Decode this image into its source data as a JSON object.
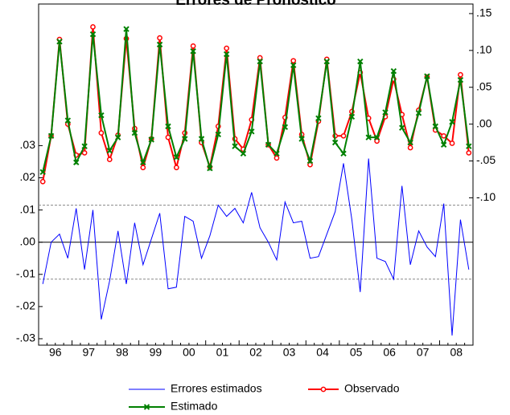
{
  "chart_data": {
    "type": "line",
    "title": "Errores de Pronostico",
    "categories": [
      "96",
      null,
      null,
      null,
      "97",
      null,
      null,
      null,
      "98",
      null,
      null,
      null,
      "99",
      null,
      null,
      null,
      "00",
      null,
      null,
      null,
      "01",
      null,
      null,
      null,
      "02",
      null,
      null,
      null,
      "03",
      null,
      null,
      null,
      "04",
      null,
      null,
      null,
      "05",
      null,
      null,
      null,
      "06",
      null,
      null,
      null,
      "07",
      null,
      null,
      null,
      "08",
      null,
      null,
      null
    ],
    "series": [
      {
        "name": "Errores estimados",
        "color": "#0000ff",
        "axis": "y",
        "marker": "none",
        "values": [
          -0.013,
          0.0,
          0.0025,
          -0.005,
          0.0105,
          -0.0085,
          0.01,
          -0.024,
          -0.012,
          0.0035,
          -0.013,
          0.006,
          -0.007,
          0.001,
          0.009,
          -0.0145,
          -0.014,
          0.008,
          0.0065,
          -0.005,
          0.002,
          0.0115,
          0.008,
          0.0105,
          0.006,
          0.0155,
          0.0045,
          0.0,
          -0.0055,
          0.0125,
          0.006,
          0.0065,
          -0.005,
          -0.0045,
          0.0025,
          0.0095,
          0.0245,
          0.007,
          -0.0155,
          0.026,
          -0.005,
          -0.006,
          -0.0115,
          0.0175,
          -0.007,
          0.0035,
          -0.0015,
          -0.0045,
          0.012,
          -0.029,
          0.007,
          -0.0085
        ]
      },
      {
        "name": "Observado",
        "color": "#ff0000",
        "axis": "y2",
        "marker": "circle",
        "values": [
          -0.078,
          -0.016,
          0.115,
          0.0,
          -0.042,
          -0.039,
          0.132,
          -0.012,
          -0.048,
          -0.015,
          0.116,
          -0.006,
          -0.059,
          -0.02,
          0.117,
          -0.018,
          -0.059,
          -0.012,
          0.106,
          -0.025,
          -0.058,
          -0.003,
          0.103,
          -0.02,
          -0.034,
          0.006,
          0.09,
          -0.028,
          -0.046,
          0.009,
          0.086,
          -0.014,
          -0.055,
          0.004,
          0.088,
          -0.016,
          -0.016,
          0.017,
          0.07,
          0.008,
          -0.023,
          0.01,
          0.061,
          0.013,
          -0.032,
          0.019,
          0.064,
          -0.008,
          -0.016,
          -0.026,
          0.067,
          -0.039
        ]
      },
      {
        "name": "Estimado",
        "color": "#008000",
        "axis": "y2",
        "marker": "x",
        "values": [
          -0.065,
          -0.016,
          0.112,
          0.005,
          -0.052,
          -0.03,
          0.122,
          0.012,
          -0.036,
          -0.018,
          0.129,
          -0.012,
          -0.052,
          -0.021,
          0.108,
          -0.003,
          -0.045,
          -0.02,
          0.099,
          -0.02,
          -0.06,
          -0.014,
          0.095,
          -0.03,
          -0.04,
          -0.01,
          0.085,
          -0.028,
          -0.04,
          -0.004,
          0.08,
          -0.02,
          -0.05,
          0.008,
          0.085,
          -0.025,
          -0.04,
          0.01,
          0.085,
          -0.018,
          -0.018,
          0.016,
          0.072,
          -0.005,
          -0.025,
          0.015,
          0.065,
          -0.003,
          -0.028,
          0.003,
          0.06,
          -0.03
        ]
      }
    ],
    "bands": [
      0.0115,
      -0.0115
    ],
    "ylim": [
      -0.032,
      0.074
    ],
    "yticks": [
      {
        "value": -0.03,
        "label": "-.03"
      },
      {
        "value": -0.02,
        "label": "-.02"
      },
      {
        "value": -0.01,
        "label": "-.01"
      },
      {
        "value": 0,
        "label": ".00"
      },
      {
        "value": 0.01,
        "label": ".01"
      },
      {
        "value": 0.02,
        "label": ".02"
      },
      {
        "value": 0.03,
        "label": ".03"
      }
    ],
    "y2lim": [
      -0.3,
      0.163
    ],
    "y2ticks": [
      {
        "value": -0.1,
        "label": "-.10"
      },
      {
        "value": -0.05,
        "label": "-.05"
      },
      {
        "value": 0,
        "label": ".00"
      },
      {
        "value": 0.05,
        "label": ".05"
      },
      {
        "value": 0.1,
        "label": ".10"
      },
      {
        "value": 0.15,
        "label": ".15"
      }
    ],
    "grid": false
  }
}
